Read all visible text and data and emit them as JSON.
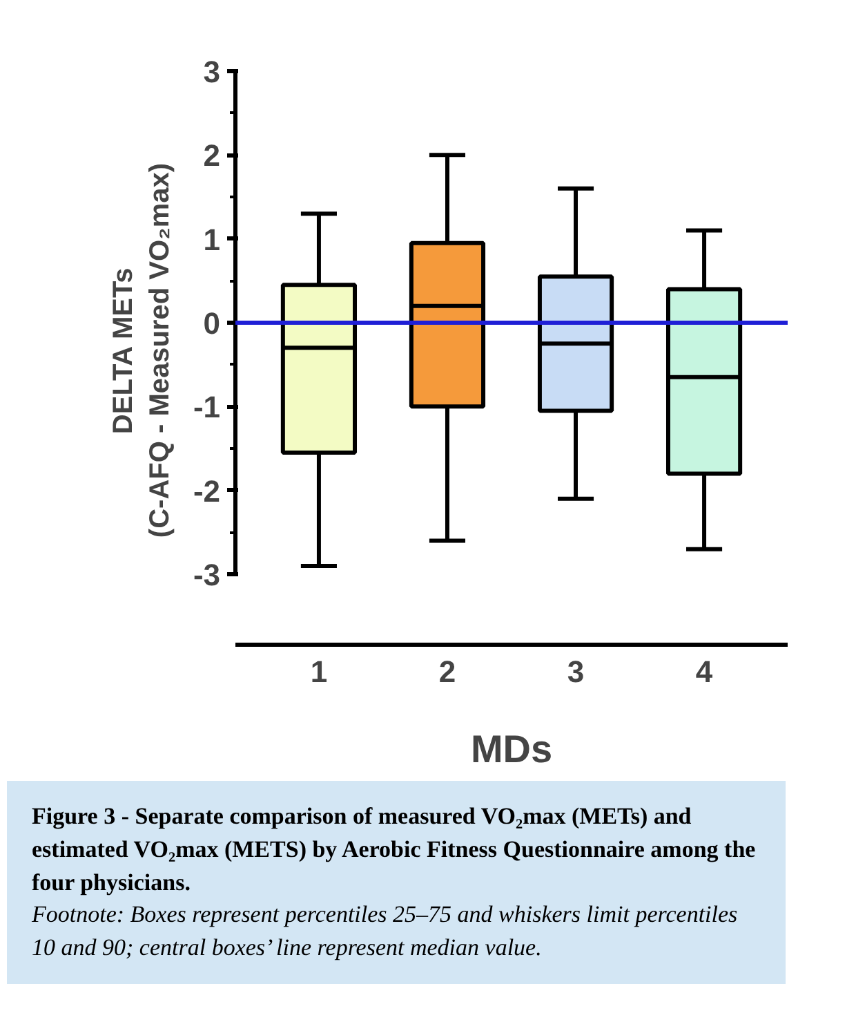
{
  "chart_data": {
    "type": "box",
    "title": "Figure 3 - Separate comparison of measured VO₂max (METs) and estimated VO₂max (METS) by Aerobic Fitness Questionnaire among the four physicians.",
    "annotations": [
      "Footnote: Boxes represent percentiles 25–75 and whiskers limit percentiles 10 and 90; central boxes’ line represent median value."
    ],
    "xlabel": "MDs",
    "ylabel": "DELTA METs\n(C-AFQ - Measured VO₂max)",
    "categories": [
      "1",
      "2",
      "3",
      "4"
    ],
    "colors": [
      "#f3fbc4",
      "#f59a3b",
      "#c8dcf5",
      "#c6f5e0"
    ],
    "boxes": [
      {
        "low": -2.9,
        "q1": -1.55,
        "median": -0.3,
        "q3": 0.45,
        "high": 1.3
      },
      {
        "low": -2.6,
        "q1": -1.0,
        "median": 0.2,
        "q3": 0.95,
        "high": 2.0
      },
      {
        "low": -2.1,
        "q1": -1.05,
        "median": -0.25,
        "q3": 0.55,
        "high": 1.6
      },
      {
        "low": -2.7,
        "q1": -1.8,
        "median": -0.65,
        "q3": 0.4,
        "high": 1.1
      }
    ],
    "ylim": [
      -3,
      3
    ],
    "yticks": [
      -3,
      -2,
      -1,
      0,
      1,
      2,
      3
    ],
    "ref_lines": [
      {
        "axis": "y",
        "value": 0,
        "color": "#1f1fd6"
      }
    ],
    "grid": false
  }
}
